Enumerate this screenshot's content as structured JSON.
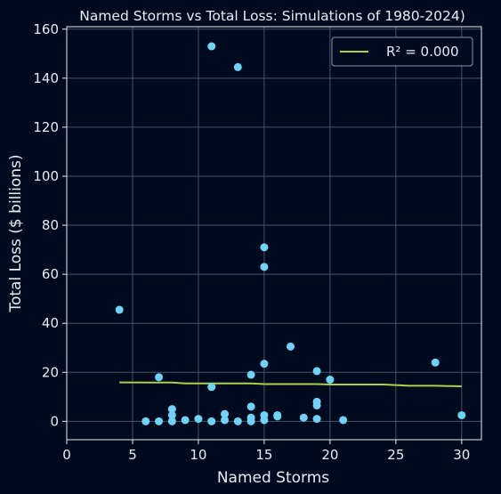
{
  "chart_data": {
    "type": "scatter",
    "title": "Named Storms vs Total Loss: Simulations of 1980-2024)",
    "xlabel": "Named Storms",
    "ylabel": "Total Loss ($ billions)",
    "xlim": [
      0,
      31.5
    ],
    "ylim": [
      -7.5,
      161
    ],
    "xticks": [
      0,
      5,
      10,
      15,
      20,
      25,
      30
    ],
    "yticks": [
      0,
      20,
      40,
      60,
      80,
      100,
      120,
      140,
      160
    ],
    "grid": true,
    "legend_position": "top-right",
    "points": [
      {
        "x": 4,
        "y": 45.5
      },
      {
        "x": 6,
        "y": 0
      },
      {
        "x": 7,
        "y": 18
      },
      {
        "x": 7,
        "y": 0
      },
      {
        "x": 8,
        "y": 5
      },
      {
        "x": 8,
        "y": 2.5
      },
      {
        "x": 8,
        "y": 0
      },
      {
        "x": 9,
        "y": 0.5
      },
      {
        "x": 10,
        "y": 1
      },
      {
        "x": 11,
        "y": 153
      },
      {
        "x": 11,
        "y": 14
      },
      {
        "x": 11,
        "y": 0
      },
      {
        "x": 12,
        "y": 3
      },
      {
        "x": 12,
        "y": 0.5
      },
      {
        "x": 13,
        "y": 144.5
      },
      {
        "x": 13,
        "y": 0
      },
      {
        "x": 14,
        "y": 19
      },
      {
        "x": 14,
        "y": 6
      },
      {
        "x": 14,
        "y": 1.5
      },
      {
        "x": 14,
        "y": 0
      },
      {
        "x": 15,
        "y": 71
      },
      {
        "x": 15,
        "y": 63
      },
      {
        "x": 15,
        "y": 23.5
      },
      {
        "x": 15,
        "y": 2.5
      },
      {
        "x": 15,
        "y": 0.5
      },
      {
        "x": 16,
        "y": 2.5
      },
      {
        "x": 16,
        "y": 2
      },
      {
        "x": 17,
        "y": 30.5
      },
      {
        "x": 18,
        "y": 1.5
      },
      {
        "x": 19,
        "y": 20.5
      },
      {
        "x": 19,
        "y": 8
      },
      {
        "x": 19,
        "y": 6.5
      },
      {
        "x": 19,
        "y": 1
      },
      {
        "x": 20,
        "y": 17
      },
      {
        "x": 21,
        "y": 0.5
      },
      {
        "x": 28,
        "y": 24
      },
      {
        "x": 30,
        "y": 2.5
      }
    ],
    "trendline": {
      "name": "R² = 0.000",
      "x": [
        4,
        6,
        7,
        8,
        9,
        10,
        11,
        12,
        13,
        14,
        15,
        16,
        17,
        18,
        19,
        20,
        21,
        22,
        23,
        24,
        25,
        26,
        27,
        28,
        29,
        30
      ],
      "y": [
        15.9,
        15.8,
        15.8,
        15.8,
        15.5,
        15.5,
        15.5,
        15.5,
        15.5,
        15.5,
        15.2,
        15.2,
        15.2,
        15.2,
        15.2,
        15.0,
        15.0,
        15.0,
        15.0,
        15.0,
        14.8,
        14.5,
        14.5,
        14.5,
        14.4,
        14.3
      ]
    },
    "colors": {
      "background": "#000a1f",
      "points": "#6fd3f7",
      "trendline": "#a8d14a",
      "grid": "#5a6478",
      "text": "#e8ecf2"
    }
  }
}
